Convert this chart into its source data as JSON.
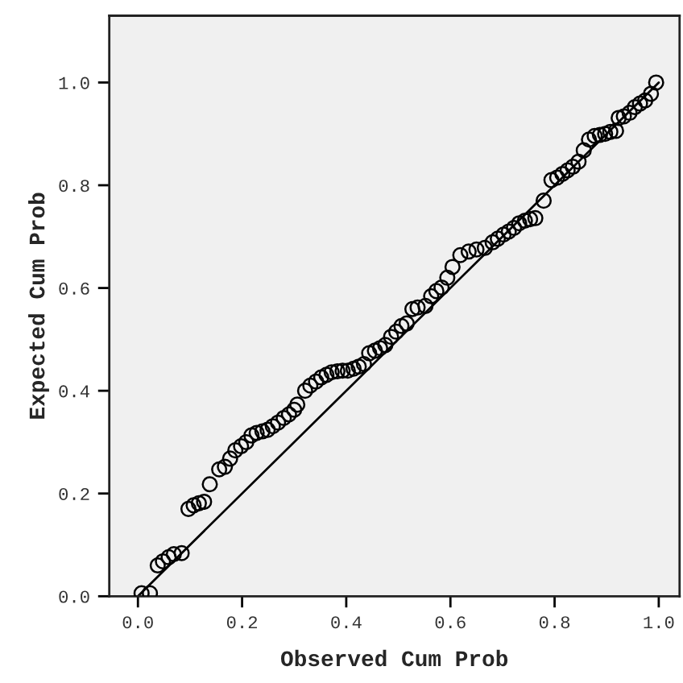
{
  "chart_data": {
    "type": "scatter",
    "xlabel": "Observed Cum Prob",
    "ylabel": "Expected Cum Prob",
    "xlim": [
      -0.055,
      1.04
    ],
    "ylim": [
      0,
      1.13
    ],
    "xticks": [
      {
        "value": 0,
        "label": "0.0"
      },
      {
        "value": 0.2,
        "label": "0.2"
      },
      {
        "value": 0.4,
        "label": "0.4"
      },
      {
        "value": 0.6,
        "label": "0.6"
      },
      {
        "value": 0.8,
        "label": "0.8"
      },
      {
        "value": 1,
        "label": "1.0"
      }
    ],
    "yticks": [
      {
        "value": 0,
        "label": "0.0"
      },
      {
        "value": 0.2,
        "label": "0.2"
      },
      {
        "value": 0.4,
        "label": "0.4"
      },
      {
        "value": 0.6,
        "label": "0.6"
      },
      {
        "value": 0.8,
        "label": "0.8"
      },
      {
        "value": 1,
        "label": "1.0"
      }
    ],
    "grid": false,
    "series": [
      {
        "marker": "circle",
        "color": "#000000",
        "x": [
          0.007,
          0.023,
          0.038,
          0.048,
          0.059,
          0.069,
          0.084,
          0.097,
          0.107,
          0.117,
          0.127,
          0.138,
          0.156,
          0.167,
          0.177,
          0.187,
          0.198,
          0.208,
          0.218,
          0.228,
          0.239,
          0.249,
          0.259,
          0.269,
          0.28,
          0.29,
          0.3,
          0.306,
          0.321,
          0.331,
          0.342,
          0.352,
          0.362,
          0.372,
          0.383,
          0.393,
          0.403,
          0.414,
          0.424,
          0.434,
          0.444,
          0.455,
          0.465,
          0.475,
          0.486,
          0.496,
          0.506,
          0.516,
          0.527,
          0.537,
          0.552,
          0.563,
          0.573,
          0.583,
          0.594,
          0.604,
          0.619,
          0.635,
          0.65,
          0.666,
          0.681,
          0.691,
          0.702,
          0.712,
          0.722,
          0.732,
          0.743,
          0.753,
          0.763,
          0.779,
          0.794,
          0.805,
          0.815,
          0.825,
          0.835,
          0.846,
          0.856,
          0.866,
          0.877,
          0.887,
          0.897,
          0.907,
          0.918,
          0.923,
          0.933,
          0.944,
          0.954,
          0.964,
          0.974,
          0.985,
          0.995
        ],
        "values": [
          0.006,
          0.006,
          0.06,
          0.068,
          0.076,
          0.082,
          0.084,
          0.17,
          0.177,
          0.181,
          0.184,
          0.218,
          0.247,
          0.252,
          0.268,
          0.284,
          0.292,
          0.3,
          0.313,
          0.318,
          0.321,
          0.324,
          0.331,
          0.338,
          0.347,
          0.354,
          0.363,
          0.373,
          0.4,
          0.41,
          0.418,
          0.426,
          0.431,
          0.436,
          0.438,
          0.439,
          0.439,
          0.443,
          0.447,
          0.452,
          0.473,
          0.478,
          0.483,
          0.489,
          0.505,
          0.515,
          0.526,
          0.531,
          0.559,
          0.562,
          0.565,
          0.584,
          0.594,
          0.601,
          0.62,
          0.641,
          0.664,
          0.671,
          0.675,
          0.678,
          0.689,
          0.696,
          0.704,
          0.71,
          0.717,
          0.726,
          0.731,
          0.734,
          0.736,
          0.77,
          0.81,
          0.815,
          0.822,
          0.829,
          0.836,
          0.846,
          0.868,
          0.889,
          0.896,
          0.898,
          0.9,
          0.904,
          0.906,
          0.931,
          0.934,
          0.941,
          0.952,
          0.959,
          0.965,
          0.978,
          1.0
        ]
      },
      {
        "type": "line",
        "color": "#000000",
        "x": [
          0,
          1
        ],
        "values": [
          0,
          1
        ],
        "line_style": "solid"
      }
    ]
  }
}
